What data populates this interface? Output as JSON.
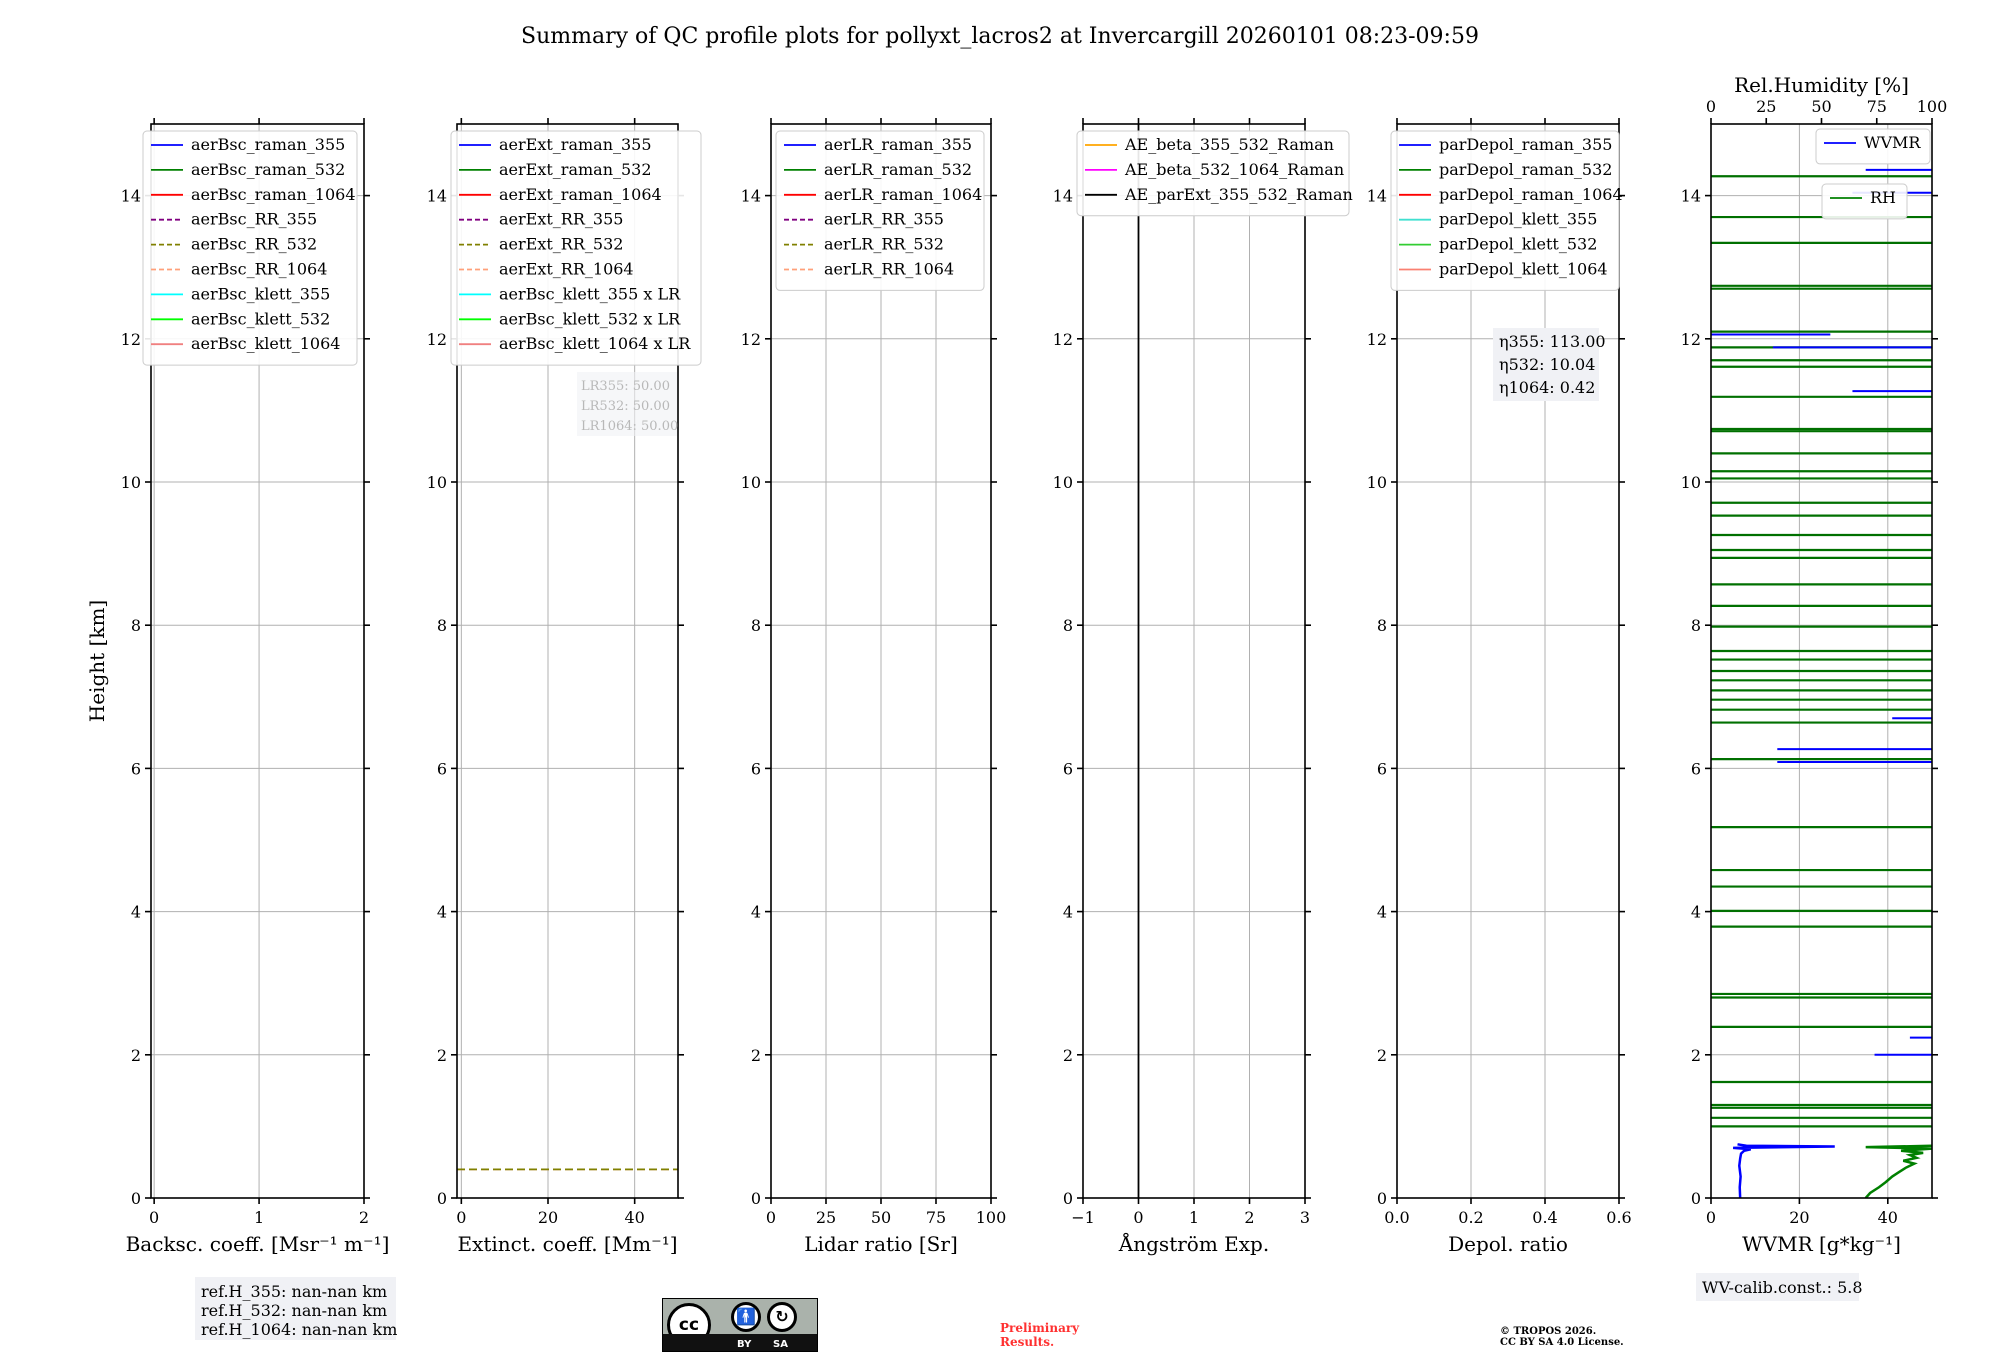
{
  "title": "Summary of QC profile plots for pollyxt_lacros2 at Invercargill 20260101 08:23-09:59",
  "ylabel": "Height [km]",
  "chart_data": [
    {
      "type": "line",
      "xlabel": "Backsc. coeff. [Msr⁻¹ m⁻¹]",
      "ylabel": "Height [km]",
      "xlim": [
        -0.03,
        2
      ],
      "ylim": [
        0,
        15
      ],
      "xticks": [
        "0",
        "1",
        "2"
      ],
      "xtick_values": [
        0,
        1,
        2
      ],
      "yticks": [
        0,
        2,
        4,
        6,
        8,
        10,
        12,
        14
      ],
      "grid": true,
      "legend": [
        {
          "label": "aerBsc_raman_355",
          "color": "#0000ff",
          "dash": false
        },
        {
          "label": "aerBsc_raman_532",
          "color": "#008000",
          "dash": false
        },
        {
          "label": "aerBsc_raman_1064",
          "color": "#ff0000",
          "dash": false
        },
        {
          "label": "aerBsc_RR_355",
          "color": "#800080",
          "dash": true
        },
        {
          "label": "aerBsc_RR_532",
          "color": "#808000",
          "dash": true
        },
        {
          "label": "aerBsc_RR_1064",
          "color": "#ffa07a",
          "dash": true
        },
        {
          "label": "aerBsc_klett_355",
          "color": "#00ffff",
          "dash": false
        },
        {
          "label": "aerBsc_klett_532",
          "color": "#00ff00",
          "dash": false
        },
        {
          "label": "aerBsc_klett_1064",
          "color": "#f08080",
          "dash": false
        }
      ],
      "series": []
    },
    {
      "type": "line",
      "xlabel": "Extinct. coeff. [Mm⁻¹]",
      "xlim": [
        -1,
        50
      ],
      "ylim": [
        0,
        15
      ],
      "xticks": [
        "0",
        "20",
        "40"
      ],
      "xtick_values": [
        0,
        20,
        40
      ],
      "yticks": [
        0,
        2,
        4,
        6,
        8,
        10,
        12,
        14
      ],
      "grid": true,
      "legend": [
        {
          "label": "aerExt_raman_355",
          "color": "#0000ff",
          "dash": false
        },
        {
          "label": "aerExt_raman_532",
          "color": "#008000",
          "dash": false
        },
        {
          "label": "aerExt_raman_1064",
          "color": "#ff0000",
          "dash": false
        },
        {
          "label": "aerExt_RR_355",
          "color": "#800080",
          "dash": true
        },
        {
          "label": "aerExt_RR_532",
          "color": "#808000",
          "dash": true
        },
        {
          "label": "aerExt_RR_1064",
          "color": "#ffa07a",
          "dash": true
        },
        {
          "label": "aerBsc_klett_355 x LR",
          "color": "#00ffff",
          "dash": false
        },
        {
          "label": "aerBsc_klett_532 x LR",
          "color": "#00ff00",
          "dash": false
        },
        {
          "label": "aerBsc_klett_1064 x LR",
          "color": "#f08080",
          "dash": false
        }
      ],
      "annotation": [
        "LR355: 50.00",
        "LR532: 50.00",
        "LR1064: 50.00"
      ],
      "series": [
        {
          "name": "aerExt_RR_1064",
          "kind": "hline",
          "y": 0.4,
          "x": [
            -1,
            50
          ],
          "color": "#ffa07a",
          "dash": true
        },
        {
          "name": "aerExt_RR_532",
          "kind": "hline",
          "y": 0.4,
          "x": [
            -1,
            50
          ],
          "color": "#808000",
          "dash": true
        }
      ]
    },
    {
      "type": "line",
      "xlabel": "Lidar ratio [Sr]",
      "xlim": [
        0,
        100
      ],
      "ylim": [
        0,
        15
      ],
      "xticks": [
        "0",
        "25",
        "50",
        "75",
        "100"
      ],
      "xtick_values": [
        0,
        25,
        50,
        75,
        100
      ],
      "yticks": [
        0,
        2,
        4,
        6,
        8,
        10,
        12,
        14
      ],
      "grid": true,
      "legend": [
        {
          "label": "aerLR_raman_355",
          "color": "#0000ff",
          "dash": false
        },
        {
          "label": "aerLR_raman_532",
          "color": "#008000",
          "dash": false
        },
        {
          "label": "aerLR_raman_1064",
          "color": "#ff0000",
          "dash": false
        },
        {
          "label": "aerLR_RR_355",
          "color": "#800080",
          "dash": true
        },
        {
          "label": "aerLR_RR_532",
          "color": "#808000",
          "dash": true
        },
        {
          "label": "aerLR_RR_1064",
          "color": "#ffa07a",
          "dash": true
        }
      ],
      "series": []
    },
    {
      "type": "line",
      "xlabel": "Ångström Exp.",
      "xlim": [
        -1,
        3
      ],
      "ylim": [
        0,
        15
      ],
      "xticks": [
        "−1",
        "0",
        "1",
        "2",
        "3"
      ],
      "xtick_values": [
        -1,
        0,
        1,
        2,
        3
      ],
      "yticks": [
        0,
        2,
        4,
        6,
        8,
        10,
        12,
        14
      ],
      "grid": true,
      "legend": [
        {
          "label": "AE_beta_355_532_Raman",
          "color": "#ffa500",
          "dash": false
        },
        {
          "label": "AE_beta_532_1064_Raman",
          "color": "#ff00ff",
          "dash": false
        },
        {
          "label": "AE_parExt_355_532_Raman",
          "color": "#000000",
          "dash": false
        }
      ],
      "series": [
        {
          "name": "AE_parExt_355_532_Raman",
          "kind": "vline",
          "x": 0,
          "y": [
            0,
            15
          ],
          "color": "#000000",
          "dash": false
        }
      ]
    },
    {
      "type": "line",
      "xlabel": "Depol. ratio",
      "xlim": [
        0,
        0.6
      ],
      "ylim": [
        0,
        15
      ],
      "xticks": [
        "0.0",
        "0.2",
        "0.4",
        "0.6"
      ],
      "xtick_values": [
        0,
        0.2,
        0.4,
        0.6
      ],
      "yticks": [
        0,
        2,
        4,
        6,
        8,
        10,
        12,
        14
      ],
      "grid": true,
      "legend": [
        {
          "label": "parDepol_raman_355",
          "color": "#0000ff",
          "dash": false
        },
        {
          "label": "parDepol_raman_532",
          "color": "#008000",
          "dash": false
        },
        {
          "label": "parDepol_raman_1064",
          "color": "#ff0000",
          "dash": false
        },
        {
          "label": "parDepol_klett_355",
          "color": "#40e0d0",
          "dash": false
        },
        {
          "label": "parDepol_klett_532",
          "color": "#32cd32",
          "dash": false
        },
        {
          "label": "parDepol_klett_1064",
          "color": "#fa8072",
          "dash": false
        }
      ],
      "annotation": [
        "η355: 113.00",
        "η532: 10.04",
        "η1064: 0.42"
      ],
      "series": []
    },
    {
      "type": "line",
      "xlabel": "WVMR [g*kg⁻¹]",
      "top_xlabel": "Rel.Humidity [%]",
      "xlim": [
        0,
        50
      ],
      "top_xlim": [
        0,
        100
      ],
      "ylim": [
        0,
        15
      ],
      "xticks": [
        "0",
        "20",
        "40"
      ],
      "xtick_values": [
        0,
        20,
        40
      ],
      "top_xticks": [
        "0",
        "25",
        "50",
        "75",
        "100"
      ],
      "top_xtick_values": [
        0,
        25,
        50,
        75,
        100
      ],
      "yticks": [
        0,
        2,
        4,
        6,
        8,
        10,
        12,
        14
      ],
      "grid": true,
      "legend": [
        {
          "label": "WVMR",
          "color": "#0000ff",
          "dash": false
        }
      ],
      "legend2": [
        {
          "label": "RH",
          "color": "#008000",
          "dash": false
        }
      ],
      "series": [
        {
          "name": "RH_artifacts",
          "kind": "hlines_full",
          "color": "#007000",
          "y": [
            14.27,
            13.7,
            13.34,
            12.74,
            12.7,
            12.1,
            11.88,
            11.7,
            11.61,
            11.19,
            10.74,
            10.71,
            10.4,
            10.15,
            10.05,
            9.71,
            9.53,
            9.26,
            9.05,
            8.94,
            8.57,
            8.27,
            7.98,
            7.64,
            7.52,
            7.36,
            7.23,
            7.09,
            6.96,
            6.82,
            6.64,
            6.13,
            5.18,
            4.58,
            4.35,
            4.01,
            3.79,
            2.85,
            2.8,
            2.39,
            1.62,
            1.3,
            1.26,
            1.12,
            1.0
          ]
        },
        {
          "name": "WVMR_artifacts",
          "kind": "hsegments",
          "color": "#0000ff",
          "segments": [
            [
              14.36,
              35,
              50
            ],
            [
              14.04,
              32,
              50
            ],
            [
              12.06,
              0,
              27
            ],
            [
              11.88,
              14,
              50
            ],
            [
              11.27,
              32,
              50
            ],
            [
              6.7,
              41,
              50
            ],
            [
              6.27,
              15,
              50
            ],
            [
              6.09,
              15,
              50
            ],
            [
              2.24,
              45,
              50
            ],
            [
              2.0,
              37,
              50
            ]
          ]
        },
        {
          "name": "WVMR",
          "kind": "profile",
          "axis": "bottom",
          "color": "#0000ff",
          "x": [
            6.6,
            6.5,
            6.7,
            6.4,
            6.6,
            6.8,
            7.5,
            9,
            5,
            28,
            8,
            6
          ],
          "y": [
            0,
            0.15,
            0.3,
            0.45,
            0.55,
            0.62,
            0.66,
            0.68,
            0.7,
            0.72,
            0.73,
            0.75
          ]
        },
        {
          "name": "RH",
          "kind": "profile",
          "axis": "top",
          "color": "#008000",
          "x": [
            70,
            72,
            76,
            79,
            82,
            85,
            88,
            92,
            87,
            93,
            90,
            96,
            86,
            100,
            70,
            100
          ],
          "y": [
            0,
            0.07,
            0.15,
            0.22,
            0.3,
            0.36,
            0.42,
            0.48,
            0.52,
            0.56,
            0.6,
            0.63,
            0.66,
            0.69,
            0.71,
            0.73
          ]
        }
      ],
      "annotation": [
        "WV-calib.const.: 5.8"
      ]
    }
  ],
  "footer": {
    "ref_heights": [
      "ref.H_355: nan-nan km",
      "ref.H_532: nan-nan km",
      "ref.H_1064: nan-nan km"
    ],
    "license_badge": {
      "cc": "cc",
      "by": "BY",
      "sa": "SA"
    },
    "preliminary": [
      "Preliminary",
      "Results."
    ],
    "copyright": [
      "© TROPOS 2026.",
      "CC BY SA 4.0 License."
    ]
  }
}
